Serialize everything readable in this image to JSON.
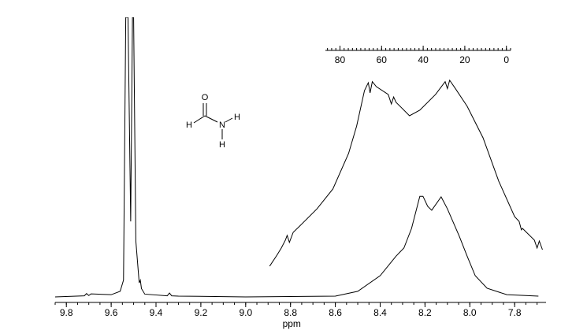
{
  "chart_data": {
    "type": "line",
    "x_label": "ppm",
    "xlim": [
      9.85,
      7.66
    ],
    "ylim": [
      0,
      100
    ],
    "xticks": [
      9.8,
      9.6,
      9.4,
      9.2,
      {
        "value": 9.0,
        "label": "9.0"
      },
      8.8,
      8.6,
      8.4,
      8.2,
      {
        "value": 8.0,
        "label": "8.0"
      },
      7.8
    ],
    "xminor_step": 0.05,
    "color": "#000000",
    "series": [
      {
        "x": [
          9.85,
          9.72,
          9.71,
          9.7,
          9.69,
          9.6,
          9.56,
          9.545,
          9.535,
          9.525,
          9.513,
          9.505,
          9.5,
          9.49,
          9.475,
          9.47,
          9.465,
          9.45,
          9.35,
          9.34,
          9.33,
          9.3,
          9.0,
          8.6,
          8.5,
          8.4,
          8.329,
          8.294,
          8.26,
          8.223,
          8.209,
          8.188,
          8.17,
          8.128,
          8.1,
          8.047,
          8.012,
          7.976,
          7.923,
          7.835,
          7.694
        ],
        "values": [
          0,
          0.4,
          1.2,
          0.5,
          1.1,
          0.8,
          2,
          6,
          100,
          100,
          27,
          100,
          100,
          20,
          5,
          6,
          3,
          1,
          0.4,
          1.4,
          0.4,
          0.3,
          0,
          0.3,
          2,
          7.6,
          14.6,
          17.5,
          24.5,
          36,
          36,
          32.4,
          31,
          35.8,
          31.5,
          21.7,
          14.6,
          7.6,
          3.1,
          0.8,
          0.3
        ]
      },
      {
        "x": [
          8.893,
          8.86,
          8.841,
          8.823,
          8.815,
          8.805,
          8.788,
          8.752,
          8.682,
          8.611,
          8.541,
          8.505,
          8.47,
          8.453,
          8.445,
          8.435,
          8.417,
          8.364,
          8.35,
          8.34,
          8.329,
          8.269,
          8.223,
          8.153,
          8.11,
          8.1,
          8.09,
          8.065,
          8.012,
          7.941,
          7.871,
          7.8,
          7.78,
          7.77,
          7.765,
          7.712,
          7.7,
          7.69,
          7.676
        ],
        "values": [
          11,
          15,
          17.5,
          20.3,
          22,
          19.5,
          23.1,
          25.9,
          31.5,
          38.6,
          51.3,
          61.1,
          73.8,
          76.6,
          73,
          77,
          75.2,
          72.4,
          69,
          71.5,
          69.6,
          64.8,
          66.8,
          72.4,
          77,
          74.5,
          77.5,
          74.6,
          68.2,
          56.9,
          41.4,
          28.7,
          27,
          24,
          24.5,
          20.3,
          17.5,
          20,
          16.9
        ]
      }
    ],
    "inset_scale": {
      "xlim": [
        87,
        -2
      ],
      "xticks": [
        80,
        60,
        40,
        20,
        0
      ],
      "minor_step": 2
    },
    "annotations": [
      "O",
      "H",
      "N",
      "H",
      "H"
    ]
  }
}
